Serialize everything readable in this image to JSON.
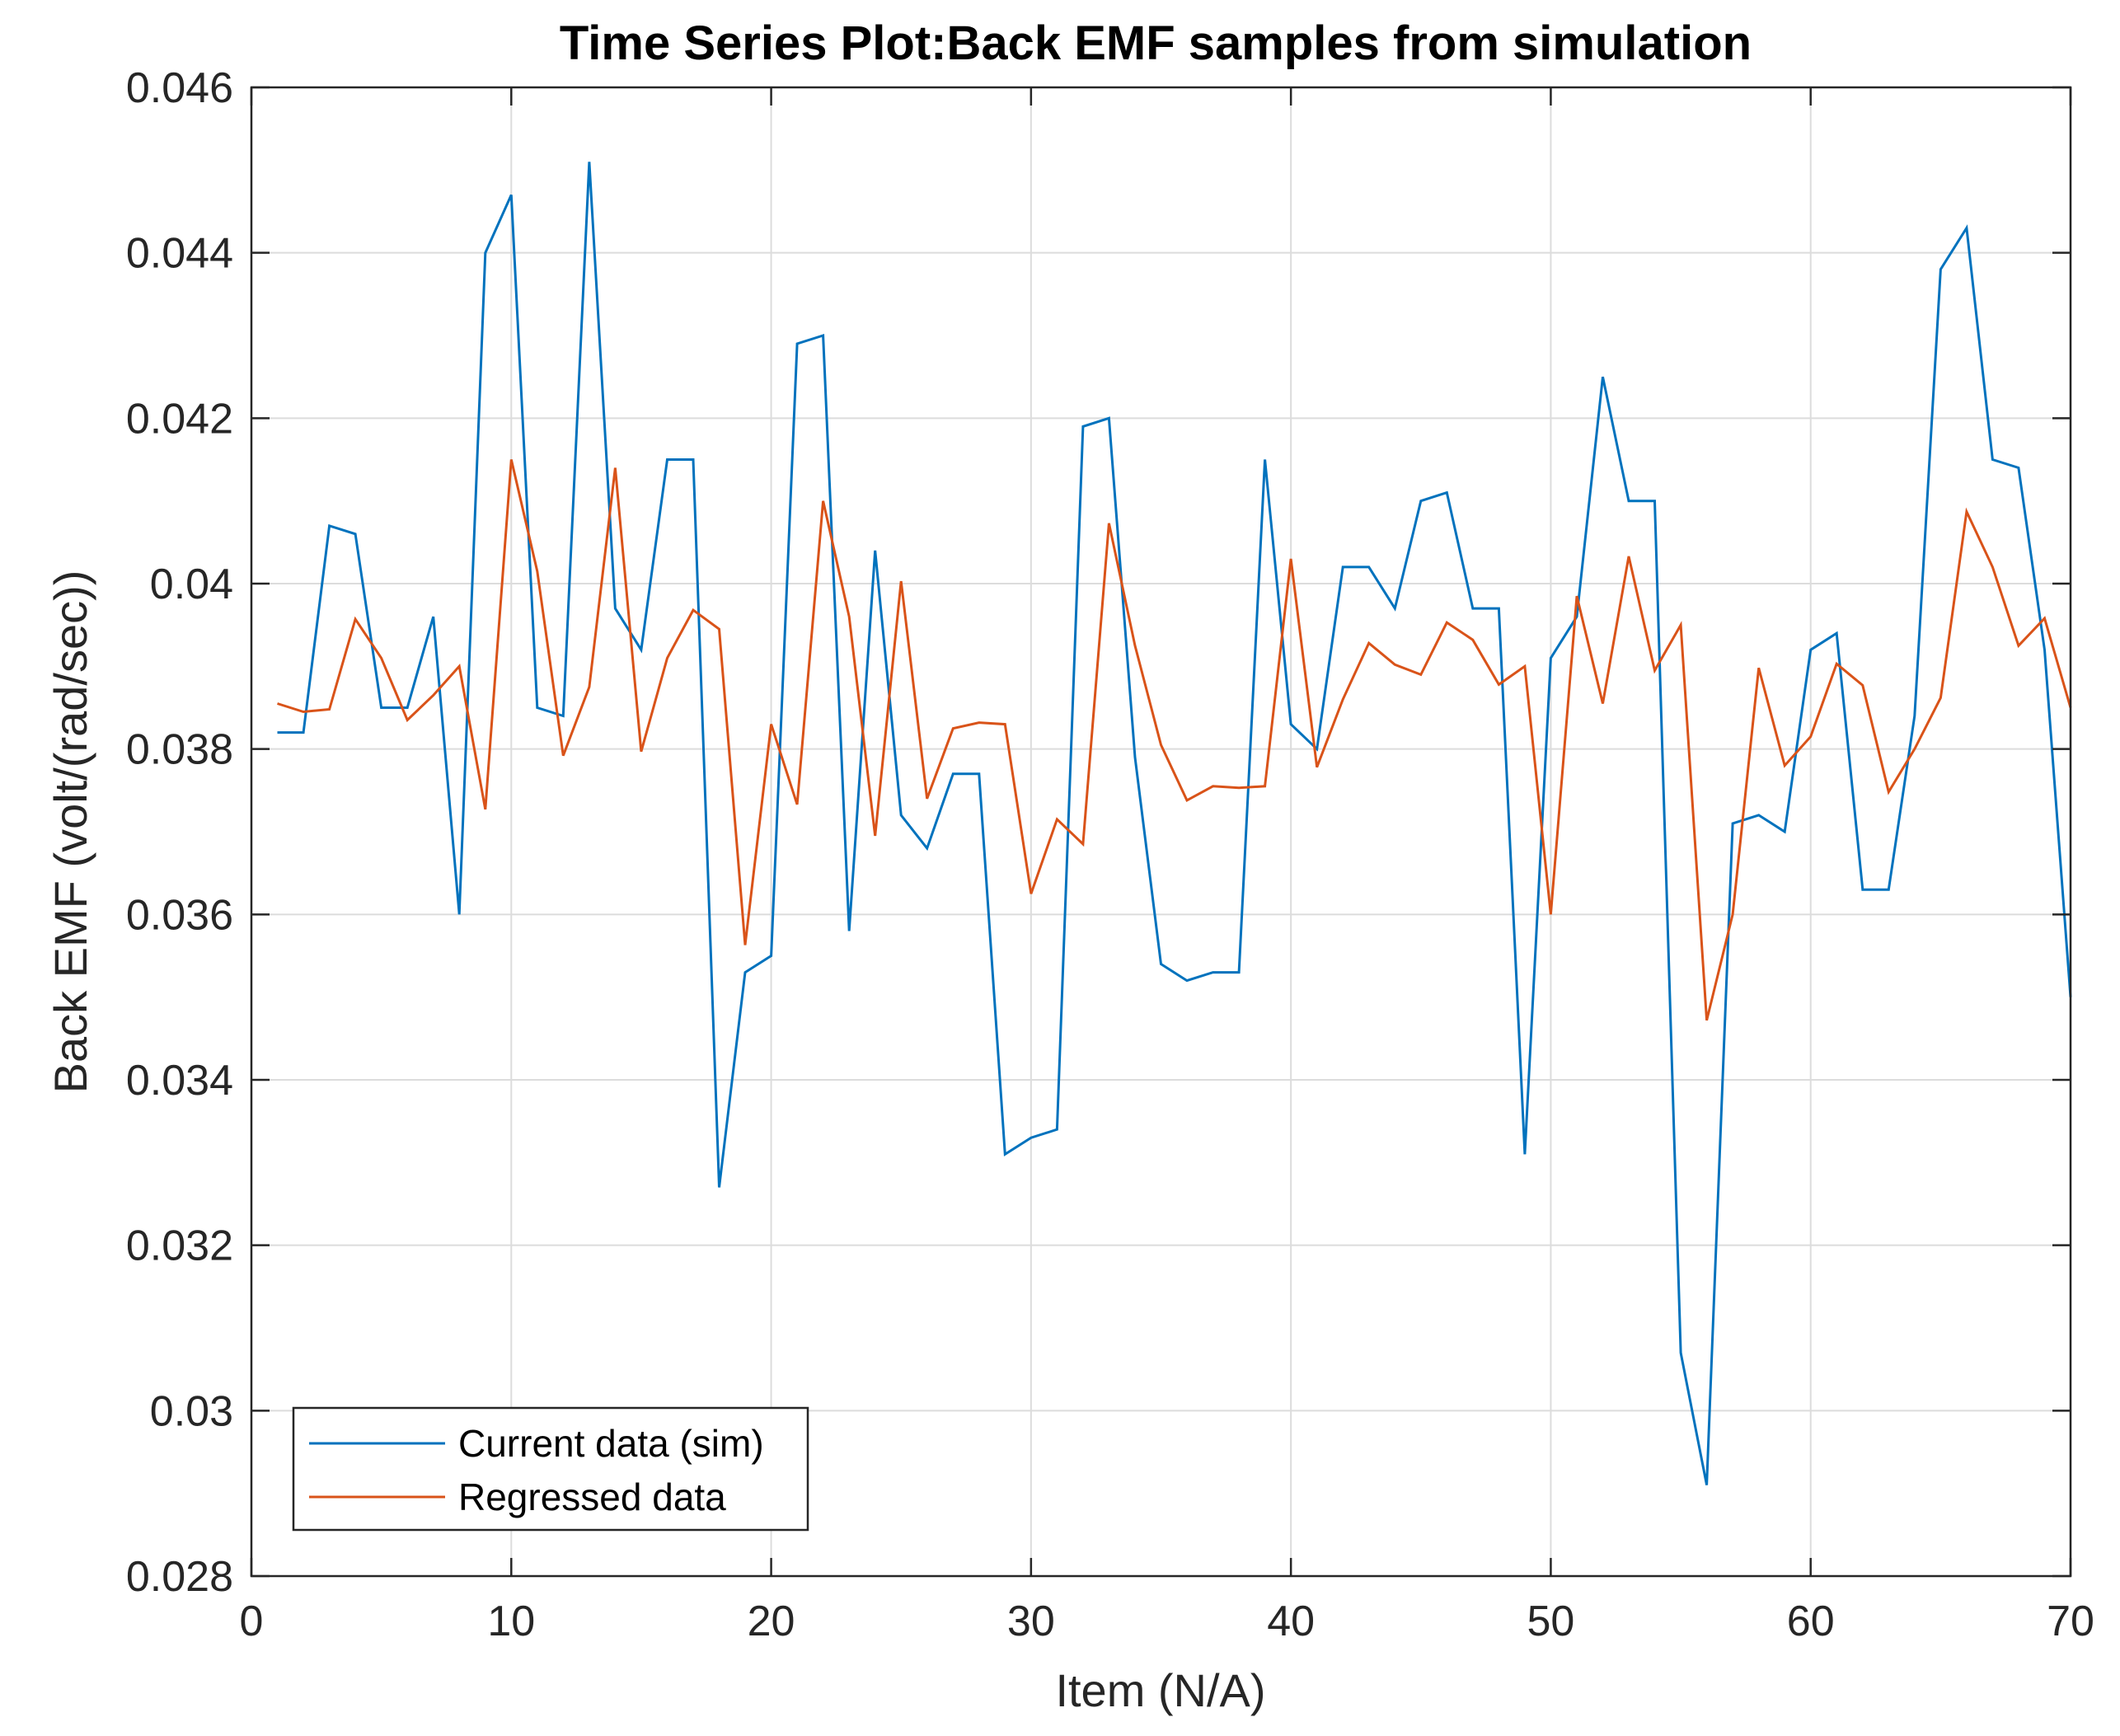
{
  "chart_data": {
    "type": "line",
    "title": "Time Series Plot:Back EMF samples from simulation",
    "xlabel": "Item (N/A)",
    "ylabel": "Back EMF (volt/(rad/sec))",
    "xlim": [
      0,
      70
    ],
    "ylim": [
      0.028,
      0.046
    ],
    "grid": true,
    "legend_location": "bottom-left",
    "x_ticks": [
      0,
      10,
      20,
      30,
      40,
      50,
      60,
      70
    ],
    "x_tick_labels": [
      "0",
      "10",
      "20",
      "30",
      "40",
      "50",
      "60",
      "70"
    ],
    "y_ticks": [
      0.028,
      0.03,
      0.032,
      0.034,
      0.036,
      0.038,
      0.04,
      0.042,
      0.044,
      0.046
    ],
    "y_tick_labels": [
      "0.028",
      "0.03",
      "0.032",
      "0.034",
      "0.036",
      "0.038",
      "0.04",
      "0.042",
      "0.044",
      "0.046"
    ],
    "x": [
      1,
      2,
      3,
      4,
      5,
      6,
      7,
      8,
      9,
      10,
      11,
      12,
      13,
      14,
      15,
      16,
      17,
      18,
      19,
      20,
      21,
      22,
      23,
      24,
      25,
      26,
      27,
      28,
      29,
      30,
      31,
      32,
      33,
      34,
      35,
      36,
      37,
      38,
      39,
      40,
      41,
      42,
      43,
      44,
      45,
      46,
      47,
      48,
      49,
      50,
      51,
      52,
      53,
      54,
      55,
      56,
      57,
      58,
      59,
      60,
      61,
      62,
      63,
      64,
      65,
      66,
      67,
      68,
      69,
      70
    ],
    "series": [
      {
        "name": "Current data (sim)",
        "color": "#0072BD",
        "values": [
          0.0382,
          0.0382,
          0.0407,
          0.0406,
          0.0385,
          0.0385,
          0.0396,
          0.036,
          0.044,
          0.0447,
          0.0385,
          0.0384,
          0.0451,
          0.0397,
          0.0392,
          0.0415,
          0.0415,
          0.0327,
          0.0353,
          0.0355,
          0.0429,
          0.043,
          0.0358,
          0.0404,
          0.0372,
          0.0368,
          0.0377,
          0.0377,
          0.0331,
          0.0333,
          0.0334,
          0.0419,
          0.042,
          0.0379,
          0.0354,
          0.0352,
          0.0353,
          0.0353,
          0.0415,
          0.0383,
          0.038,
          0.0402,
          0.0402,
          0.0397,
          0.041,
          0.0411,
          0.0397,
          0.0397,
          0.0331,
          0.0391,
          0.0396,
          0.0425,
          0.041,
          0.041,
          0.0307,
          0.0291,
          0.0371,
          0.0372,
          0.037,
          0.0392,
          0.0394,
          0.0363,
          0.0363,
          0.0384,
          0.0438,
          0.0443,
          0.0415,
          0.0414,
          0.0392,
          0.035
        ]
      },
      {
        "name": "Regressed data",
        "color": "#D95319",
        "values": [
          0.03855,
          0.03845,
          0.03848,
          0.03957,
          0.0391,
          0.03835,
          0.03865,
          0.039,
          0.03727,
          0.0415,
          0.04015,
          0.03792,
          0.03875,
          0.0414,
          0.03797,
          0.0391,
          0.03968,
          0.03945,
          0.03563,
          0.0383,
          0.03733,
          0.041,
          0.0396,
          0.03695,
          0.04003,
          0.0374,
          0.03825,
          0.03832,
          0.0383,
          0.03625,
          0.03715,
          0.03685,
          0.04073,
          0.03925,
          0.03805,
          0.03738,
          0.03755,
          0.03753,
          0.03755,
          0.0403,
          0.03778,
          0.0386,
          0.03928,
          0.03902,
          0.0389,
          0.03953,
          0.03932,
          0.03878,
          0.039,
          0.036,
          0.03985,
          0.03855,
          0.04033,
          0.03895,
          0.0395,
          0.03472,
          0.036,
          0.03898,
          0.0378,
          0.03815,
          0.03903,
          0.03877,
          0.03748,
          0.038,
          0.03862,
          0.04087,
          0.0402,
          0.03925,
          0.03958,
          0.0385
        ]
      }
    ]
  }
}
